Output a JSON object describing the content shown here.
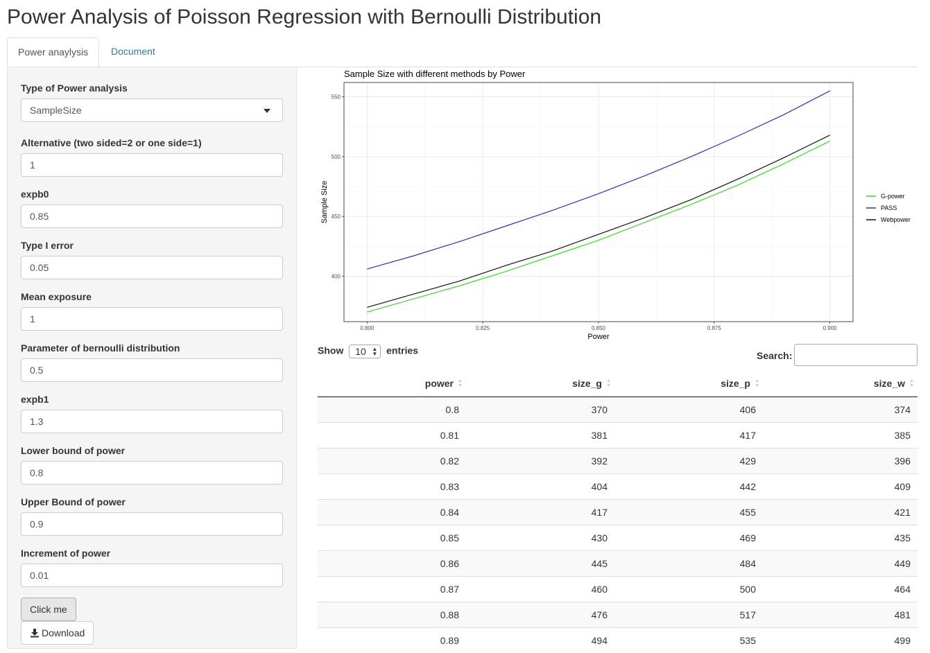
{
  "page": {
    "title": "Power Analysis of Poisson Regression with Bernoulli Distribution"
  },
  "tabs": [
    {
      "label": "Power anaylysis",
      "active": true
    },
    {
      "label": "Document",
      "active": false
    }
  ],
  "sidebar": {
    "type_label": "Type of Power analysis",
    "type_value": "SampleSize",
    "fields": [
      {
        "label": "Alternative (two sided=2 or one side=1)",
        "value": "1"
      },
      {
        "label": "expb0",
        "value": "0.85"
      },
      {
        "label": "Type I error",
        "value": "0.05"
      },
      {
        "label": "Mean exposure",
        "value": "1"
      },
      {
        "label": "Parameter of bernoulli distribution",
        "value": "0.5"
      },
      {
        "label": "expb1",
        "value": "1.3"
      },
      {
        "label": "Lower bound of power",
        "value": "0.8"
      },
      {
        "label": "Upper Bound of power",
        "value": "0.9"
      },
      {
        "label": "Increment of power",
        "value": "0.01"
      }
    ],
    "click_button": "Click me",
    "download_button": "Download"
  },
  "chart_data": {
    "type": "line",
    "title": "Sample Size with different methods by Power",
    "xlabel": "Power",
    "ylabel": "Sample Size",
    "x": [
      0.8,
      0.81,
      0.82,
      0.83,
      0.84,
      0.85,
      0.86,
      0.87,
      0.88,
      0.89,
      0.9
    ],
    "xticks": [
      "0.800",
      "0.825",
      "0.850",
      "0.875",
      "0.900"
    ],
    "yticks": [
      "400",
      "450",
      "500",
      "550"
    ],
    "xlim": [
      0.795,
      0.905
    ],
    "ylim": [
      362,
      562
    ],
    "grid": true,
    "legend_position": "right",
    "series": [
      {
        "name": "G-power",
        "color": "#33dd22",
        "values": [
          370,
          381,
          392,
          404,
          417,
          430,
          445,
          460,
          476,
          494,
          513
        ]
      },
      {
        "name": "PASS",
        "color": "#2233cc",
        "values": [
          406,
          417,
          429,
          442,
          455,
          469,
          484,
          500,
          517,
          535,
          555
        ]
      },
      {
        "name": "Webpower",
        "color": "#111111",
        "values": [
          374,
          385,
          396,
          409,
          421,
          435,
          449,
          464,
          481,
          499,
          518
        ]
      }
    ]
  },
  "table": {
    "show_label": "Show",
    "entries_value": "10",
    "entries_label": "entries",
    "search_label": "Search:",
    "columns": [
      "power",
      "size_g",
      "size_p",
      "size_w"
    ],
    "rows": [
      [
        "0.8",
        "370",
        "406",
        "374"
      ],
      [
        "0.81",
        "381",
        "417",
        "385"
      ],
      [
        "0.82",
        "392",
        "429",
        "396"
      ],
      [
        "0.83",
        "404",
        "442",
        "409"
      ],
      [
        "0.84",
        "417",
        "455",
        "421"
      ],
      [
        "0.85",
        "430",
        "469",
        "435"
      ],
      [
        "0.86",
        "445",
        "484",
        "449"
      ],
      [
        "0.87",
        "460",
        "500",
        "464"
      ],
      [
        "0.88",
        "476",
        "517",
        "481"
      ],
      [
        "0.89",
        "494",
        "535",
        "499"
      ]
    ]
  }
}
